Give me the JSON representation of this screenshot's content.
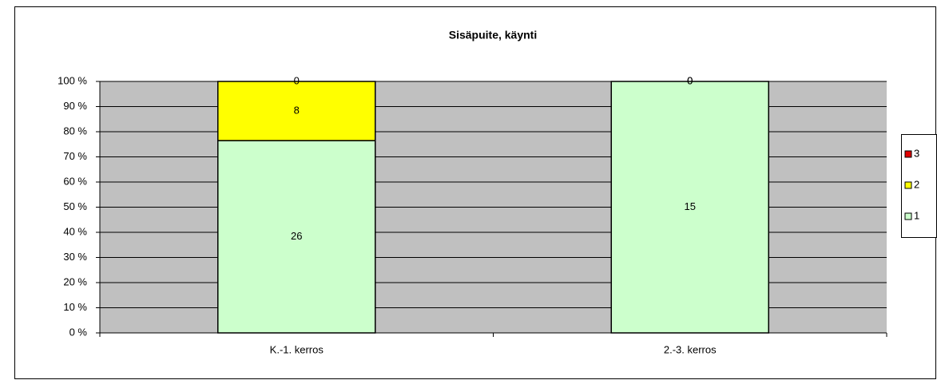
{
  "chart_data": {
    "type": "bar",
    "stacked": "percent",
    "title": "Sisäpuite, käynti",
    "categories": [
      "K.-1. kerros",
      "2.-3. kerros"
    ],
    "series": [
      {
        "name": "1",
        "color": "#ccffcc",
        "values": [
          26,
          15
        ]
      },
      {
        "name": "2",
        "color": "#ffff00",
        "values": [
          8,
          0
        ]
      },
      {
        "name": "3",
        "color": "#e00000",
        "values": [
          0,
          0
        ]
      }
    ],
    "ylim": [
      0,
      100
    ],
    "yticks": [
      {
        "value": 0,
        "label": "0 %"
      },
      {
        "value": 10,
        "label": "10 %"
      },
      {
        "value": 20,
        "label": "20 %"
      },
      {
        "value": 30,
        "label": "30 %"
      },
      {
        "value": 40,
        "label": "40 %"
      },
      {
        "value": 50,
        "label": "50 %"
      },
      {
        "value": 60,
        "label": "60 %"
      },
      {
        "value": 70,
        "label": "70 %"
      },
      {
        "value": 80,
        "label": "80 %"
      },
      {
        "value": 90,
        "label": "90 %"
      },
      {
        "value": 100,
        "label": "100 %"
      }
    ],
    "grid": true,
    "legend": "right",
    "plot_background": "#c0c0c0"
  }
}
